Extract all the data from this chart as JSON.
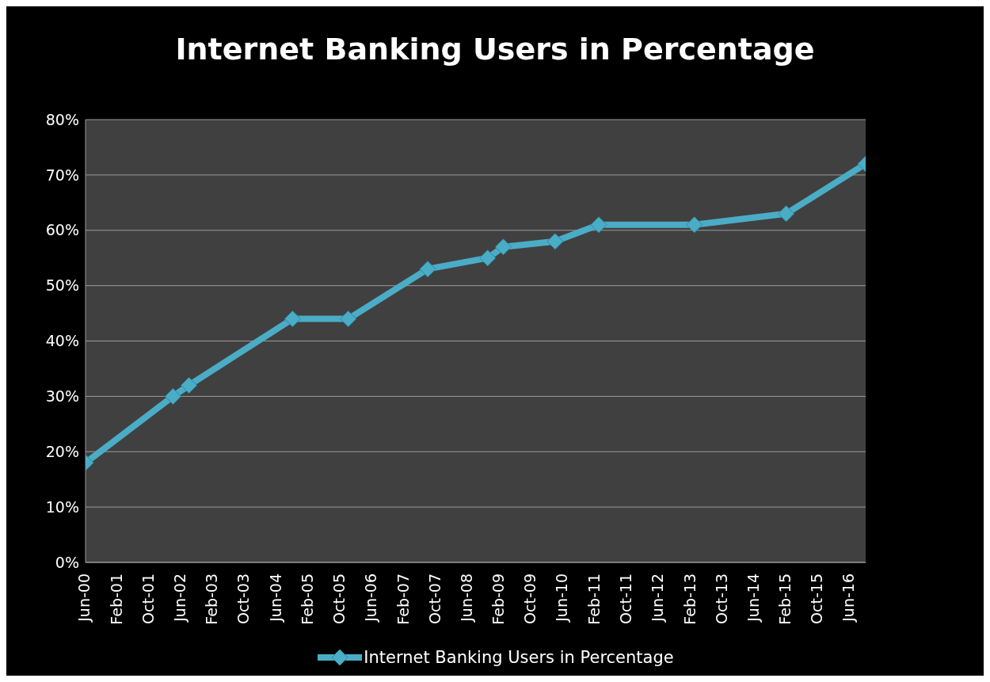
{
  "chart_data": {
    "type": "line",
    "title": "Internet Banking Users in Percentage",
    "x": [
      "2000-06",
      "2002-04",
      "2002-08",
      "2004-10",
      "2005-12",
      "2007-08",
      "2008-11",
      "2009-03",
      "2010-04",
      "2011-03",
      "2013-03",
      "2015-02",
      "2016-10"
    ],
    "series": [
      {
        "name": "Internet Banking Users in Percentage",
        "color": "#4bacc6",
        "values": [
          18,
          30,
          32,
          44,
          44,
          53,
          55,
          57,
          58,
          61,
          61,
          63,
          72
        ]
      }
    ],
    "xlim": [
      "2000-06",
      "2016-10"
    ],
    "xticks": [
      {
        "value": "2000-06",
        "label": "Jun-00"
      },
      {
        "value": "2001-02",
        "label": "Feb-01"
      },
      {
        "value": "2001-10",
        "label": "Oct-01"
      },
      {
        "value": "2002-06",
        "label": "Jun-02"
      },
      {
        "value": "2003-02",
        "label": "Feb-03"
      },
      {
        "value": "2003-10",
        "label": "Oct-03"
      },
      {
        "value": "2004-06",
        "label": "Jun-04"
      },
      {
        "value": "2005-02",
        "label": "Feb-05"
      },
      {
        "value": "2005-10",
        "label": "Oct-05"
      },
      {
        "value": "2006-06",
        "label": "Jun-06"
      },
      {
        "value": "2007-02",
        "label": "Feb-07"
      },
      {
        "value": "2007-10",
        "label": "Oct-07"
      },
      {
        "value": "2008-06",
        "label": "Jun-08"
      },
      {
        "value": "2009-02",
        "label": "Feb-09"
      },
      {
        "value": "2009-10",
        "label": "Oct-09"
      },
      {
        "value": "2010-06",
        "label": "Jun-10"
      },
      {
        "value": "2011-02",
        "label": "Feb-11"
      },
      {
        "value": "2011-10",
        "label": "Oct-11"
      },
      {
        "value": "2012-06",
        "label": "Jun-12"
      },
      {
        "value": "2013-02",
        "label": "Feb-13"
      },
      {
        "value": "2013-10",
        "label": "Oct-13"
      },
      {
        "value": "2014-06",
        "label": "Jun-14"
      },
      {
        "value": "2015-02",
        "label": "Feb-15"
      },
      {
        "value": "2015-10",
        "label": "Oct-15"
      },
      {
        "value": "2016-06",
        "label": "Jun-16"
      }
    ],
    "ylim": [
      0,
      80
    ],
    "yticks": [
      {
        "value": 0,
        "label": "0%"
      },
      {
        "value": 10,
        "label": "10%"
      },
      {
        "value": 20,
        "label": "20%"
      },
      {
        "value": 30,
        "label": "30%"
      },
      {
        "value": 40,
        "label": "40%"
      },
      {
        "value": 50,
        "label": "50%"
      },
      {
        "value": 60,
        "label": "60%"
      },
      {
        "value": 70,
        "label": "70%"
      },
      {
        "value": 80,
        "label": "80%"
      }
    ],
    "grid": "y",
    "legend": "bottom",
    "marker": "diamond",
    "line_style": "solid"
  }
}
